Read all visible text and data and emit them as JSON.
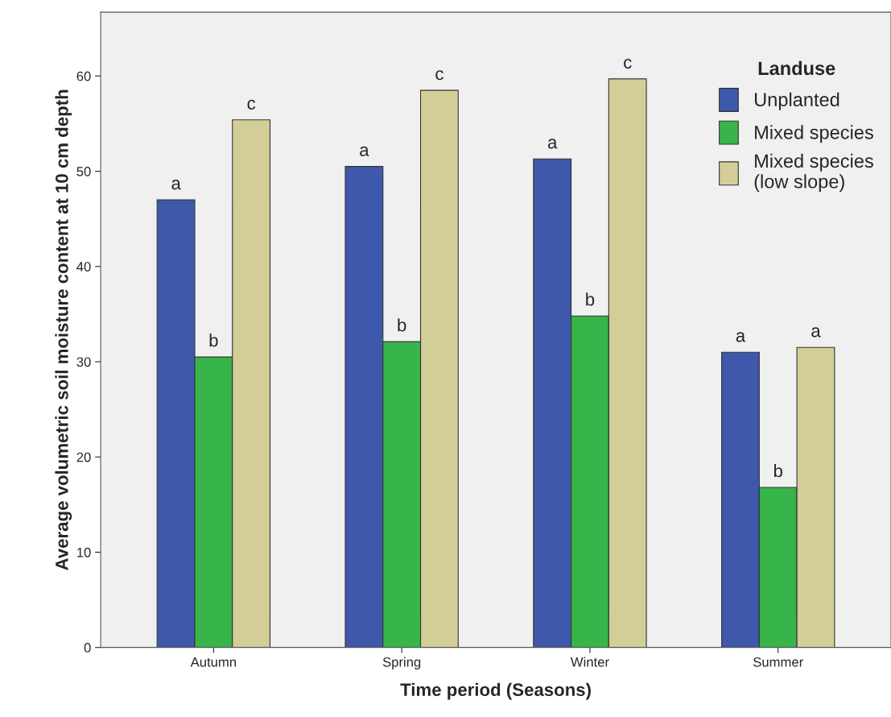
{
  "chart_data": {
    "type": "bar",
    "xlabel": "Time period (Seasons)",
    "ylabel": "Average volumetric soil moisture content at 10 cm depth",
    "legend_title": "Landuse",
    "legend": "top right",
    "grid": false,
    "categories": [
      "Autumn",
      "Spring",
      "Winter",
      "Summer"
    ],
    "ylim": [
      0,
      66.7
    ],
    "yticks": [
      0,
      10,
      20,
      30,
      40,
      50,
      60
    ],
    "series": [
      {
        "name": "Unplanted",
        "color": "#3e58ac",
        "values": [
          47.0,
          50.5,
          51.3,
          31.0
        ],
        "value_labels": [
          "a",
          "a",
          "a",
          "a"
        ]
      },
      {
        "name": "Mixed species",
        "color": "#37b44a",
        "values": [
          30.5,
          32.1,
          34.8,
          16.8
        ],
        "value_labels": [
          "b",
          "b",
          "b",
          "b"
        ]
      },
      {
        "name": "Mixed species\n(low slope)",
        "color": "#d3ce97",
        "values": [
          55.4,
          58.5,
          59.7,
          31.5
        ],
        "value_labels": [
          "c",
          "c",
          "c",
          "a"
        ]
      }
    ]
  }
}
